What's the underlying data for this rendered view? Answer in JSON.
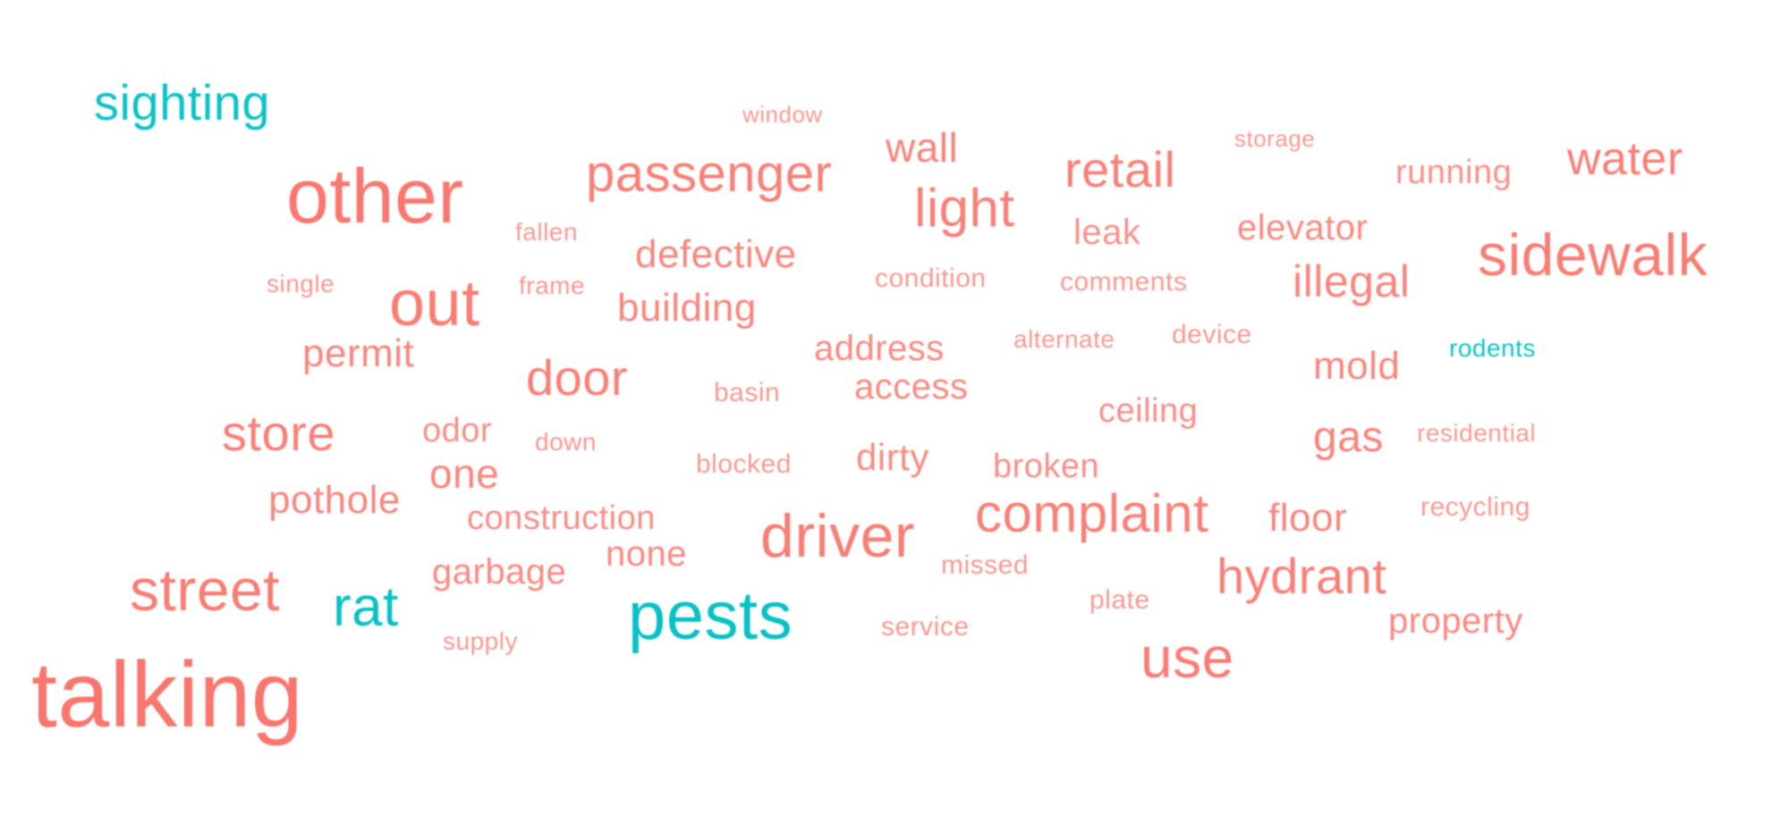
{
  "colors": {
    "salmon": "#F8766D",
    "teal": "#00BFC4",
    "background": "#FFFFFF"
  },
  "words": [
    {
      "text": "sighting",
      "color": "teal",
      "weight": 5
    },
    {
      "text": "window",
      "color": "salmon",
      "weight": 1
    },
    {
      "text": "storage",
      "color": "salmon",
      "weight": 1
    },
    {
      "text": "wall",
      "color": "salmon",
      "weight": 4
    },
    {
      "text": "retail",
      "color": "salmon",
      "weight": 5
    },
    {
      "text": "water",
      "color": "salmon",
      "weight": 5
    },
    {
      "text": "other",
      "color": "salmon",
      "weight": 9
    },
    {
      "text": "passenger",
      "color": "salmon",
      "weight": 6
    },
    {
      "text": "running",
      "color": "salmon",
      "weight": 3
    },
    {
      "text": "light",
      "color": "salmon",
      "weight": 5
    },
    {
      "text": "fallen",
      "color": "salmon",
      "weight": 1
    },
    {
      "text": "leak",
      "color": "salmon",
      "weight": 3
    },
    {
      "text": "elevator",
      "color": "salmon",
      "weight": 3
    },
    {
      "text": "defective",
      "color": "salmon",
      "weight": 4
    },
    {
      "text": "sidewalk",
      "color": "salmon",
      "weight": 7
    },
    {
      "text": "single",
      "color": "salmon",
      "weight": 1
    },
    {
      "text": "frame",
      "color": "salmon",
      "weight": 1
    },
    {
      "text": "condition",
      "color": "salmon",
      "weight": 1
    },
    {
      "text": "comments",
      "color": "salmon",
      "weight": 1
    },
    {
      "text": "illegal",
      "color": "salmon",
      "weight": 4
    },
    {
      "text": "out",
      "color": "salmon",
      "weight": 7
    },
    {
      "text": "building",
      "color": "salmon",
      "weight": 4
    },
    {
      "text": "address",
      "color": "salmon",
      "weight": 3
    },
    {
      "text": "alternate",
      "color": "salmon",
      "weight": 1
    },
    {
      "text": "device",
      "color": "salmon",
      "weight": 1
    },
    {
      "text": "rodents",
      "color": "teal",
      "weight": 1
    },
    {
      "text": "permit",
      "color": "salmon",
      "weight": 4
    },
    {
      "text": "mold",
      "color": "salmon",
      "weight": 4
    },
    {
      "text": "door",
      "color": "salmon",
      "weight": 5
    },
    {
      "text": "basin",
      "color": "salmon",
      "weight": 1
    },
    {
      "text": "access",
      "color": "salmon",
      "weight": 3
    },
    {
      "text": "ceiling",
      "color": "salmon",
      "weight": 3
    },
    {
      "text": "store",
      "color": "salmon",
      "weight": 5
    },
    {
      "text": "odor",
      "color": "salmon",
      "weight": 3
    },
    {
      "text": "down",
      "color": "salmon",
      "weight": 1
    },
    {
      "text": "gas",
      "color": "salmon",
      "weight": 4
    },
    {
      "text": "residential",
      "color": "salmon",
      "weight": 1
    },
    {
      "text": "dirty",
      "color": "salmon",
      "weight": 4
    },
    {
      "text": "blocked",
      "color": "salmon",
      "weight": 1
    },
    {
      "text": "broken",
      "color": "salmon",
      "weight": 3
    },
    {
      "text": "one",
      "color": "salmon",
      "weight": 4
    },
    {
      "text": "pothole",
      "color": "salmon",
      "weight": 4
    },
    {
      "text": "construction",
      "color": "salmon",
      "weight": 3
    },
    {
      "text": "complaint",
      "color": "salmon",
      "weight": 6
    },
    {
      "text": "floor",
      "color": "salmon",
      "weight": 4
    },
    {
      "text": "recycling",
      "color": "salmon",
      "weight": 1
    },
    {
      "text": "driver",
      "color": "salmon",
      "weight": 7
    },
    {
      "text": "none",
      "color": "salmon",
      "weight": 3
    },
    {
      "text": "garbage",
      "color": "salmon",
      "weight": 3
    },
    {
      "text": "missed",
      "color": "salmon",
      "weight": 1
    },
    {
      "text": "hydrant",
      "color": "salmon",
      "weight": 6
    },
    {
      "text": "street",
      "color": "salmon",
      "weight": 7
    },
    {
      "text": "rat",
      "color": "teal",
      "weight": 6
    },
    {
      "text": "pests",
      "color": "teal",
      "weight": 8
    },
    {
      "text": "plate",
      "color": "salmon",
      "weight": 1
    },
    {
      "text": "property",
      "color": "salmon",
      "weight": 3
    },
    {
      "text": "service",
      "color": "salmon",
      "weight": 1
    },
    {
      "text": "supply",
      "color": "salmon",
      "weight": 1
    },
    {
      "text": "use",
      "color": "salmon",
      "weight": 7
    },
    {
      "text": "talking",
      "color": "salmon",
      "weight": 10
    }
  ]
}
